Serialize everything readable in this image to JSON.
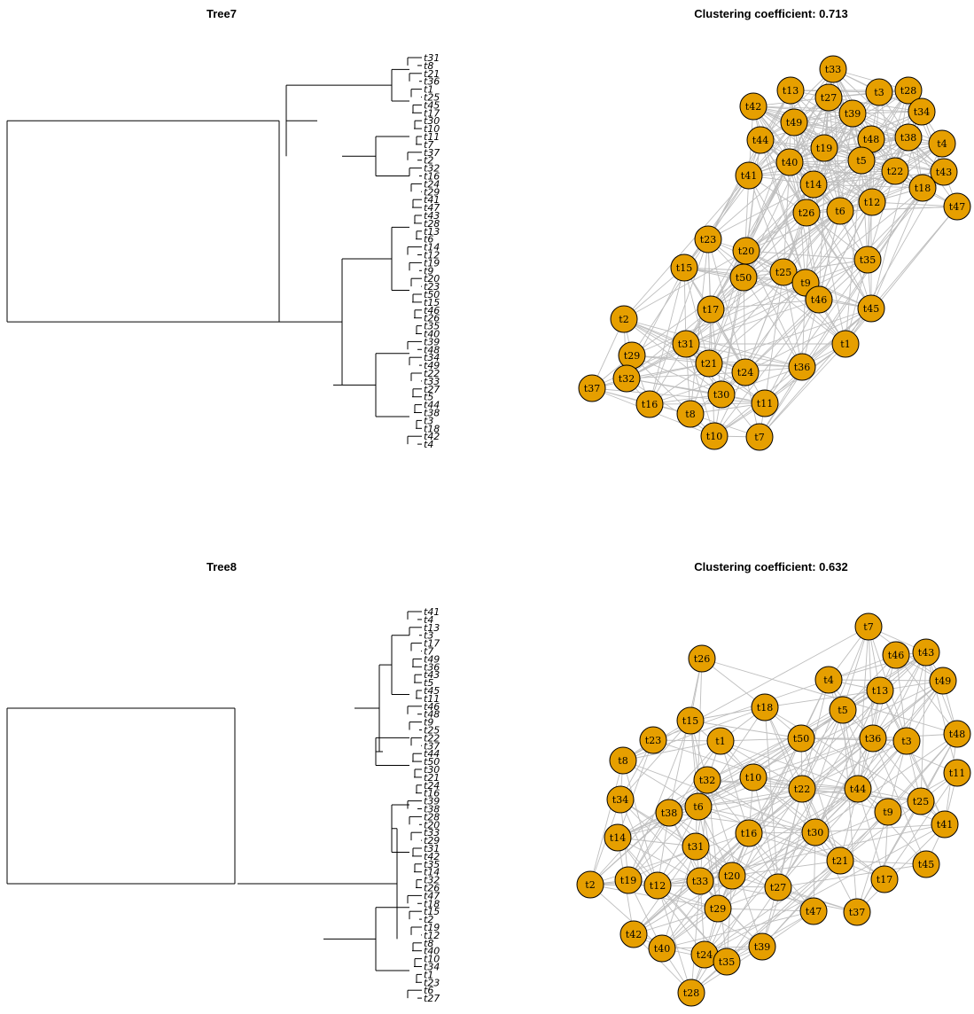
{
  "panels": [
    {
      "tree_title": "Tree7",
      "network_title": "Clustering coefficient: 0.713",
      "tips": [
        "t31",
        "t8",
        "t21",
        "t36",
        "t1",
        "t25",
        "t45",
        "t17",
        "t30",
        "t10",
        "t11",
        "t7",
        "t37",
        "t2",
        "t32",
        "t16",
        "t24",
        "t29",
        "t41",
        "t47",
        "t43",
        "t28",
        "t13",
        "t6",
        "t14",
        "t12",
        "t19",
        "t9",
        "t20",
        "t23",
        "t50",
        "t15",
        "t46",
        "t26",
        "t35",
        "t40",
        "t39",
        "t48",
        "t34",
        "t49",
        "t22",
        "t33",
        "t27",
        "t5",
        "t44",
        "t38",
        "t3",
        "t18",
        "t42",
        "t4"
      ],
      "nodes": [
        "t33",
        "t13",
        "t27",
        "t3",
        "t28",
        "t42",
        "t39",
        "t34",
        "t49",
        "t44",
        "t19",
        "t48",
        "t38",
        "t4",
        "t40",
        "t5",
        "t22",
        "t43",
        "t41",
        "t14",
        "t18",
        "t12",
        "t26",
        "t6",
        "t47",
        "t23",
        "t20",
        "t35",
        "t15",
        "t25",
        "t50",
        "t9",
        "t46",
        "t45",
        "t2",
        "t17",
        "t1",
        "t31",
        "t29",
        "t21",
        "t36",
        "t24",
        "t32",
        "t37",
        "t30",
        "t11",
        "t16",
        "t8",
        "t10",
        "t7"
      ],
      "node_color": "#E69F00",
      "edge_color": "#BEBEBE"
    },
    {
      "tree_title": "Tree8",
      "network_title": "Clustering coefficient: 0.632",
      "tips": [
        "t41",
        "t4",
        "t13",
        "t3",
        "t17",
        "t7",
        "t49",
        "t36",
        "t43",
        "t5",
        "t45",
        "t11",
        "t46",
        "t48",
        "t9",
        "t25",
        "t22",
        "t37",
        "t44",
        "t50",
        "t30",
        "t21",
        "t24",
        "t16",
        "t39",
        "t38",
        "t28",
        "t20",
        "t33",
        "t29",
        "t31",
        "t42",
        "t35",
        "t14",
        "t32",
        "t26",
        "t47",
        "t18",
        "t15",
        "t2",
        "t19",
        "t12",
        "t8",
        "t40",
        "t10",
        "t34",
        "t1",
        "t23",
        "t6",
        "t27"
      ],
      "nodes": [
        "t7",
        "t46",
        "t43",
        "t26",
        "t4",
        "t13",
        "t49",
        "t18",
        "t5",
        "t15",
        "t48",
        "t23",
        "t1",
        "t50",
        "t36",
        "t3",
        "t8",
        "t11",
        "t32",
        "t10",
        "t22",
        "t44",
        "t25",
        "t34",
        "t38",
        "t6",
        "t9",
        "t41",
        "t14",
        "t16",
        "t30",
        "t31",
        "t21",
        "t45",
        "t2",
        "t19",
        "t12",
        "t33",
        "t20",
        "t27",
        "t17",
        "t29",
        "t47",
        "t37",
        "t42",
        "t40",
        "t39",
        "t24",
        "t35",
        "t28"
      ],
      "node_color": "#E69F00",
      "edge_color": "#BEBEBE"
    }
  ]
}
